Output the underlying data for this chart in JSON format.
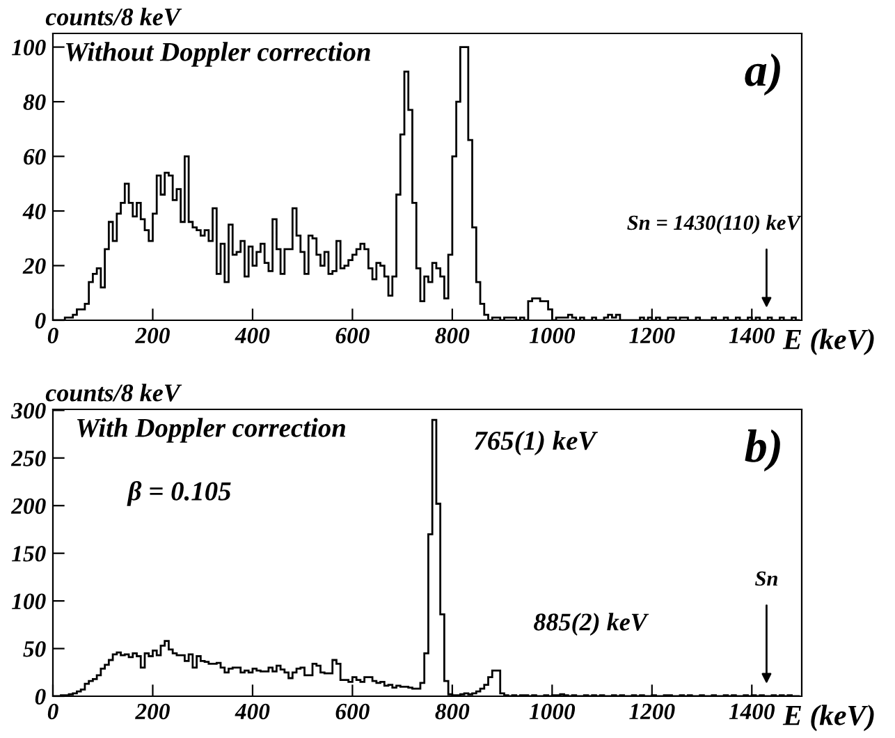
{
  "chart_data": [
    {
      "type": "histogram",
      "xlabel": "E (keV)",
      "ylabel": "counts/8 keV",
      "bins": [
        0,
        8,
        16,
        24,
        32,
        40,
        48,
        56,
        64,
        72,
        80,
        88,
        96,
        104,
        112,
        120,
        128,
        136,
        144,
        152,
        160,
        168,
        176,
        184,
        192,
        200,
        208,
        216,
        224,
        232,
        240,
        248,
        256,
        264,
        272,
        280,
        288,
        296,
        304,
        312,
        320,
        328,
        336,
        344,
        352,
        360,
        368,
        376,
        384,
        392,
        400,
        408,
        416,
        424,
        432,
        440,
        448,
        456,
        464,
        472,
        480,
        488,
        496,
        504,
        512,
        520,
        528,
        536,
        544,
        552,
        560,
        568,
        576,
        584,
        592,
        600,
        608,
        616,
        624,
        632,
        640,
        648,
        656,
        664,
        672,
        680,
        688,
        696,
        704,
        712,
        720,
        728,
        736,
        744,
        752,
        760,
        768,
        776,
        784,
        792,
        800,
        808,
        816,
        824,
        832,
        840,
        848,
        856,
        864,
        872,
        880,
        888,
        896,
        904,
        912,
        920,
        928,
        936,
        944,
        952,
        960,
        968,
        976,
        984,
        992,
        1000,
        1008,
        1016,
        1024,
        1032,
        1040,
        1048,
        1056,
        1064,
        1072,
        1080,
        1088,
        1096,
        1104,
        1112,
        1120,
        1128,
        1136,
        1144,
        1152,
        1160,
        1168,
        1176,
        1184,
        1192,
        1200,
        1208,
        1216,
        1224,
        1232,
        1240,
        1248,
        1256,
        1264,
        1272,
        1280,
        1288,
        1296,
        1304,
        1312,
        1320,
        1328,
        1336,
        1344,
        1352,
        1360,
        1368,
        1376,
        1384,
        1392,
        1400,
        1408,
        1416,
        1424,
        1432,
        1440,
        1448,
        1456,
        1464,
        1472,
        1480,
        1488,
        1496
      ],
      "values": [
        0,
        0,
        0,
        1,
        1,
        2,
        4,
        4,
        6,
        14,
        17,
        19,
        12,
        26,
        36,
        29,
        39,
        43,
        50,
        43,
        38,
        43,
        37,
        33,
        29,
        39,
        53,
        46,
        54,
        53,
        44,
        48,
        36,
        60,
        36,
        34,
        33,
        31,
        33,
        29,
        41,
        17,
        28,
        14,
        35,
        24,
        25,
        29,
        16,
        27,
        20,
        25,
        28,
        21,
        18,
        37,
        26,
        17,
        26,
        26,
        41,
        31,
        25,
        17,
        31,
        30,
        24,
        20,
        25,
        17,
        18,
        29,
        19,
        20,
        22,
        24,
        26,
        28,
        26,
        19,
        15,
        21,
        20,
        16,
        9,
        16,
        46,
        68,
        91,
        77,
        43,
        19,
        7,
        16,
        14,
        21,
        19,
        16,
        8,
        24,
        60,
        80,
        100,
        100,
        66,
        34,
        14,
        6,
        2,
        0,
        1,
        1,
        0,
        1,
        1,
        1,
        0,
        1,
        0,
        7,
        8,
        8,
        7,
        7,
        4,
        0,
        1,
        1,
        1,
        2,
        1,
        0,
        1,
        0,
        0,
        1,
        0,
        0,
        1,
        2,
        1,
        2,
        0,
        0,
        0,
        0,
        0,
        1,
        0,
        1,
        0,
        1,
        0,
        0,
        1,
        1,
        0,
        1,
        1,
        0,
        0,
        1,
        0,
        0,
        0,
        1,
        0,
        0,
        1,
        0,
        0,
        1,
        0,
        0,
        1,
        0,
        1,
        0,
        0,
        1,
        0,
        0,
        1,
        0,
        0,
        1,
        0
      ],
      "color": "#000000",
      "xlim": [
        0,
        1500
      ],
      "ylim": [
        0,
        105
      ],
      "xticks": [
        0,
        200,
        400,
        600,
        800,
        1000,
        1200,
        1400
      ],
      "yticks": [
        0,
        20,
        40,
        60,
        80,
        100
      ],
      "grid": false,
      "legend": false,
      "annotations": [
        "Without Doppler correction",
        "a)",
        "Sn = 1430(110) keV"
      ]
    },
    {
      "type": "histogram",
      "xlabel": "E (keV)",
      "ylabel": "counts/8 keV",
      "bins": [
        0,
        8,
        16,
        24,
        32,
        40,
        48,
        56,
        64,
        72,
        80,
        88,
        96,
        104,
        112,
        120,
        128,
        136,
        144,
        152,
        160,
        168,
        176,
        184,
        192,
        200,
        208,
        216,
        224,
        232,
        240,
        248,
        256,
        264,
        272,
        280,
        288,
        296,
        304,
        312,
        320,
        328,
        336,
        344,
        352,
        360,
        368,
        376,
        384,
        392,
        400,
        408,
        416,
        424,
        432,
        440,
        448,
        456,
        464,
        472,
        480,
        488,
        496,
        504,
        512,
        520,
        528,
        536,
        544,
        552,
        560,
        568,
        576,
        584,
        592,
        600,
        608,
        616,
        624,
        632,
        640,
        648,
        656,
        664,
        672,
        680,
        688,
        696,
        704,
        712,
        720,
        728,
        736,
        744,
        752,
        760,
        768,
        776,
        784,
        792,
        800,
        808,
        816,
        824,
        832,
        840,
        848,
        856,
        864,
        872,
        880,
        888,
        896,
        904,
        912,
        920,
        928,
        936,
        944,
        952,
        960,
        968,
        976,
        984,
        992,
        1000,
        1008,
        1016,
        1024,
        1032,
        1040,
        1048,
        1056,
        1064,
        1072,
        1080,
        1088,
        1096,
        1104,
        1112,
        1120,
        1128,
        1136,
        1144,
        1152,
        1160,
        1168,
        1176,
        1184,
        1192,
        1200,
        1208,
        1216,
        1224,
        1232,
        1240,
        1248,
        1256,
        1264,
        1272,
        1280,
        1288,
        1296,
        1304,
        1312,
        1320,
        1328,
        1336,
        1344,
        1352,
        1360,
        1368,
        1376,
        1384,
        1392,
        1400,
        1408,
        1416,
        1424,
        1432,
        1440,
        1448,
        1456,
        1464,
        1472,
        1480,
        1488,
        1496
      ],
      "values": [
        0,
        0,
        1,
        1,
        2,
        3,
        5,
        7,
        13,
        16,
        18,
        22,
        29,
        33,
        38,
        44,
        46,
        43,
        44,
        41,
        45,
        42,
        30,
        45,
        42,
        48,
        43,
        53,
        58,
        49,
        45,
        43,
        43,
        37,
        44,
        30,
        42,
        37,
        36,
        34,
        34,
        35,
        30,
        25,
        29,
        30,
        30,
        25,
        27,
        25,
        29,
        27,
        26,
        26,
        30,
        26,
        32,
        28,
        25,
        19,
        25,
        29,
        30,
        22,
        22,
        34,
        32,
        25,
        24,
        24,
        38,
        34,
        17,
        17,
        15,
        20,
        17,
        15,
        20,
        20,
        16,
        14,
        15,
        11,
        12,
        9,
        11,
        10,
        10,
        9,
        8,
        8,
        14,
        45,
        170,
        290,
        202,
        86,
        16,
        2,
        1,
        1,
        2,
        3,
        2,
        3,
        5,
        8,
        12,
        20,
        27,
        27,
        3,
        1,
        0,
        1,
        0,
        1,
        1,
        0,
        1,
        0,
        0,
        1,
        0,
        1,
        1,
        2,
        1,
        0,
        1,
        0,
        0,
        1,
        0,
        1,
        0,
        1,
        0,
        0,
        1,
        0,
        1,
        0,
        0,
        1,
        0,
        1,
        0,
        0,
        1,
        0,
        0,
        1,
        1,
        0,
        0,
        1,
        0,
        1,
        0,
        0,
        1,
        0,
        0,
        1,
        0,
        0,
        1,
        0,
        1,
        0,
        0,
        1,
        0,
        1,
        0,
        1,
        0,
        0,
        1,
        0,
        1,
        0,
        1,
        0,
        0
      ],
      "color": "#000000",
      "xlim": [
        0,
        1500
      ],
      "ylim": [
        0,
        301
      ],
      "xticks": [
        0,
        200,
        400,
        600,
        800,
        1000,
        1200,
        1400
      ],
      "yticks": [
        0,
        50,
        100,
        150,
        200,
        250,
        300
      ],
      "grid": false,
      "legend": false,
      "annotations": [
        "With Doppler correction",
        "b)",
        "β = 0.105",
        {
          "text": "765(1) keV",
          "x": 765,
          "y": 290
        },
        {
          "text": "885(2) keV",
          "x": 885,
          "y": 27
        },
        "Sn"
      ]
    }
  ]
}
